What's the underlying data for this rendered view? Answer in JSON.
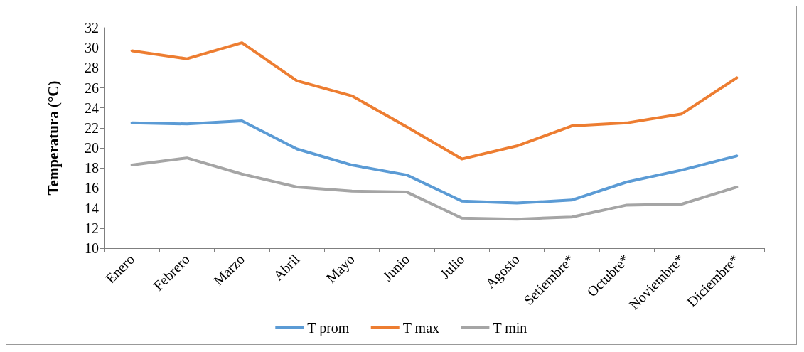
{
  "chart_data": {
    "type": "line",
    "ylabel": "Temperatura (°C)",
    "categories": [
      "Enero",
      "Febrero",
      "Marzo",
      "Abril",
      "Mayo",
      "Junio",
      "Julio",
      "Agosto",
      "Setiembre*",
      "Octubre*",
      "Noviembre*",
      "Diciembre*"
    ],
    "series": [
      {
        "name": "T prom",
        "color": "#5b9bd5",
        "values": [
          22.5,
          22.4,
          22.7,
          19.9,
          18.3,
          17.3,
          14.7,
          14.5,
          14.8,
          16.6,
          17.8,
          19.2
        ]
      },
      {
        "name": "T max",
        "color": "#ed7d31",
        "values": [
          29.7,
          28.9,
          30.5,
          26.7,
          25.2,
          22.1,
          18.9,
          20.2,
          22.2,
          22.5,
          23.4,
          27.0
        ]
      },
      {
        "name": "T min",
        "color": "#a5a5a5",
        "values": [
          18.3,
          19.0,
          17.4,
          16.1,
          15.7,
          15.6,
          13.0,
          12.9,
          13.1,
          14.3,
          14.4,
          16.1
        ]
      }
    ],
    "ylim": [
      10,
      32
    ],
    "yticks": [
      10,
      12,
      14,
      16,
      18,
      20,
      22,
      24,
      26,
      28,
      30,
      32
    ],
    "grid": false,
    "legend": "bottom",
    "marker": "none",
    "line_style": "solid"
  }
}
